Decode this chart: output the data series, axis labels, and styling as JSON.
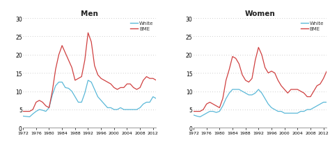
{
  "years": [
    1972,
    1973,
    1974,
    1975,
    1976,
    1977,
    1978,
    1979,
    1980,
    1981,
    1982,
    1983,
    1984,
    1985,
    1986,
    1987,
    1988,
    1989,
    1990,
    1991,
    1992,
    1993,
    1994,
    1995,
    1996,
    1997,
    1998,
    1999,
    2000,
    2001,
    2002,
    2003,
    2004,
    2005,
    2006,
    2007,
    2008,
    2009,
    2010,
    2011,
    2012,
    2013
  ],
  "men_white": [
    3.2,
    3.1,
    3.0,
    3.8,
    4.5,
    5.0,
    4.8,
    4.5,
    5.5,
    9.0,
    11.5,
    12.5,
    12.5,
    11.0,
    10.8,
    10.0,
    8.5,
    7.0,
    7.0,
    9.5,
    13.0,
    12.5,
    10.5,
    8.5,
    7.5,
    6.5,
    5.5,
    5.5,
    5.0,
    5.0,
    5.5,
    5.0,
    5.0,
    5.0,
    5.0,
    5.0,
    5.5,
    6.5,
    7.0,
    7.0,
    8.5,
    8.0
  ],
  "men_bme": [
    4.5,
    4.5,
    4.5,
    5.0,
    7.0,
    7.5,
    7.0,
    6.0,
    5.5,
    10.0,
    16.0,
    20.0,
    22.5,
    20.5,
    18.5,
    16.5,
    13.0,
    13.5,
    14.0,
    18.5,
    26.0,
    23.5,
    17.0,
    14.5,
    13.5,
    13.0,
    12.5,
    12.0,
    11.0,
    10.5,
    11.0,
    11.0,
    12.0,
    12.0,
    11.0,
    10.5,
    11.0,
    13.0,
    14.0,
    13.5,
    13.5,
    13.0
  ],
  "women_white": [
    3.5,
    3.2,
    3.0,
    3.5,
    4.0,
    4.5,
    4.5,
    4.2,
    4.5,
    6.0,
    8.0,
    9.5,
    10.5,
    10.5,
    10.5,
    10.0,
    9.5,
    9.0,
    9.0,
    9.5,
    10.5,
    9.5,
    8.0,
    6.5,
    5.5,
    5.0,
    4.5,
    4.5,
    4.0,
    4.0,
    4.0,
    4.0,
    4.0,
    4.5,
    4.5,
    5.0,
    5.0,
    5.5,
    6.0,
    6.5,
    7.0,
    7.0
  ],
  "women_bme": [
    4.5,
    4.5,
    4.5,
    5.0,
    6.5,
    7.0,
    6.5,
    6.0,
    5.5,
    8.0,
    13.0,
    16.0,
    19.5,
    19.0,
    17.5,
    14.5,
    13.0,
    12.5,
    13.5,
    18.5,
    22.0,
    20.0,
    16.5,
    15.0,
    15.5,
    15.0,
    13.0,
    11.5,
    10.5,
    9.5,
    10.5,
    10.5,
    10.5,
    10.0,
    9.5,
    8.5,
    8.5,
    10.0,
    11.5,
    12.0,
    13.5,
    15.5
  ],
  "color_white": "#5ab8d8",
  "color_bme": "#d04040",
  "title_men": "Men",
  "title_women": "Women",
  "ylim": [
    0,
    30
  ],
  "yticks": [
    0,
    5,
    10,
    15,
    20,
    25,
    30
  ],
  "xticks": [
    1972,
    1976,
    1980,
    1984,
    1988,
    1992,
    1996,
    2000,
    2004,
    2008,
    2012
  ],
  "bg_color": "#ffffff",
  "grid_color": "#bbbbbb",
  "grid_style": "dotted"
}
